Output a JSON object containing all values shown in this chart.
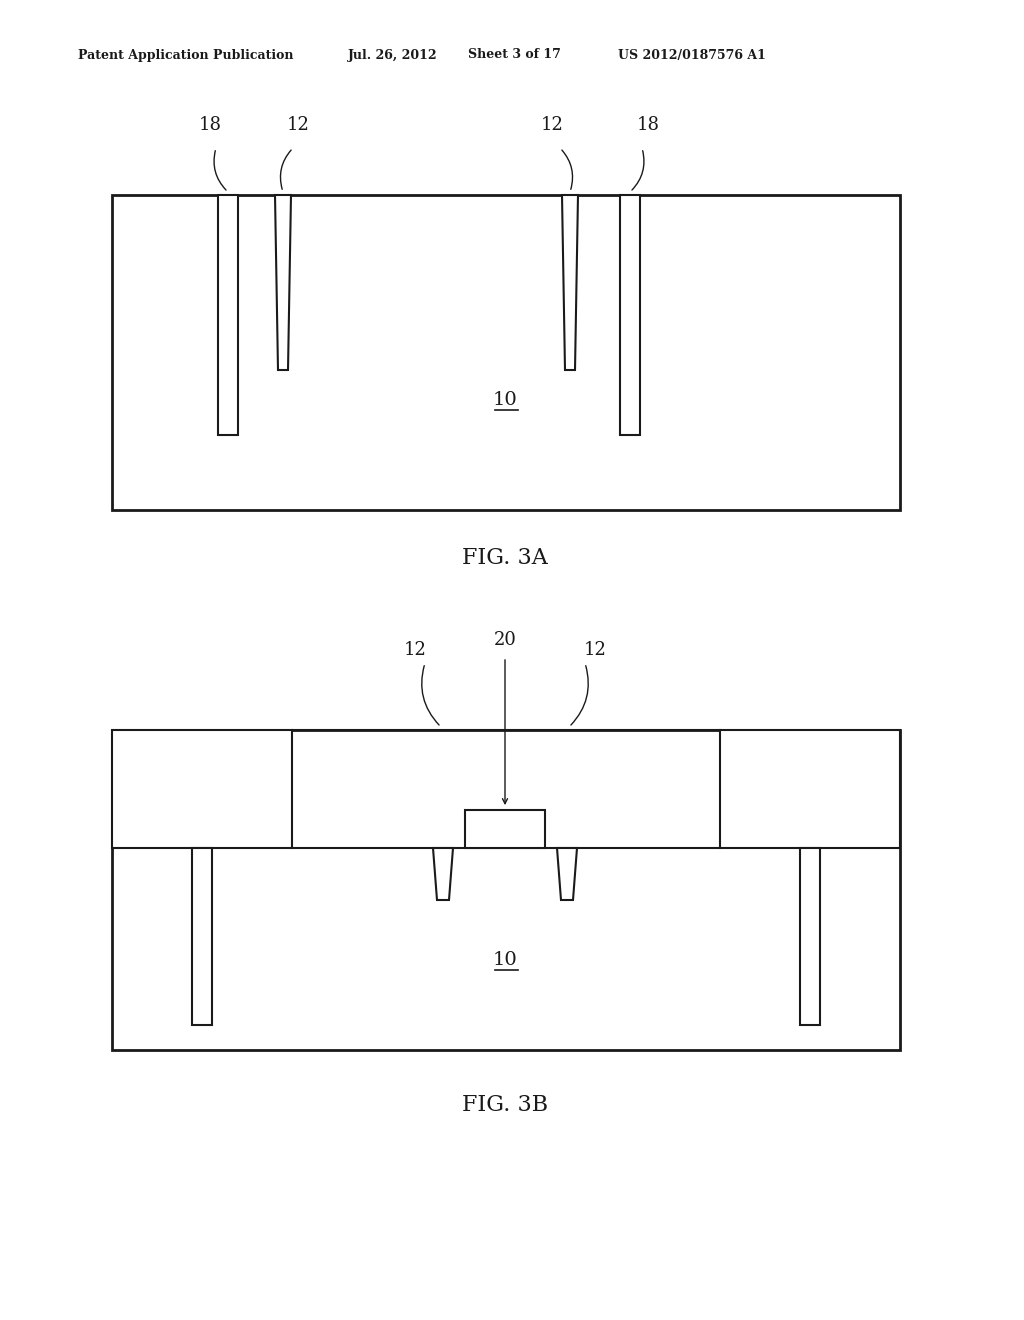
{
  "bg_color": "#ffffff",
  "line_color": "#1a1a1a",
  "fig_width": 10.24,
  "fig_height": 13.2,
  "header_text": "Patent Application Publication",
  "header_date": "Jul. 26, 2012",
  "header_sheet": "Sheet 3 of 17",
  "header_patent": "US 2012/0187576 A1",
  "fig3a_label": "FIG. 3A",
  "fig3b_label": "FIG. 3B",
  "label_10": "10",
  "label_12": "12",
  "label_18": "18",
  "label_20": "20"
}
